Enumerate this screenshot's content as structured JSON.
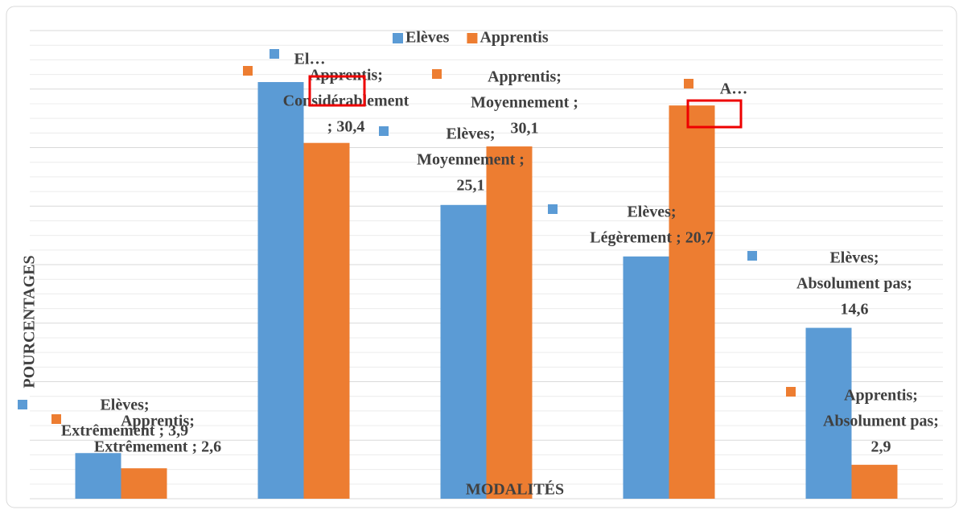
{
  "chart_data": {
    "type": "bar",
    "x_label": "MODALITÉS",
    "y_label": "POURCENTAGES",
    "categories": [
      "Extrêmement",
      "Considérablement",
      "Moyennement",
      "Légèrement",
      "Absolument pas"
    ],
    "series": [
      {
        "name": "Elèves",
        "color": "#5b9bd5",
        "values": [
          3.9,
          35.6,
          25.1,
          20.7,
          14.6
        ],
        "value_labels": [
          [
            "Elèves;",
            "Extrêmement ; 3,9"
          ],
          [
            "El…"
          ],
          [
            "Elèves;",
            "Moyennement ;",
            "25,1"
          ],
          [
            "Elèves;",
            "Légèrement ; 20,7"
          ],
          [
            "Elèves;",
            "Absolument pas;",
            "14,6"
          ]
        ]
      },
      {
        "name": "Apprentis",
        "color": "#ed7d31",
        "values": [
          2.6,
          30.4,
          30.1,
          33.6,
          2.9
        ],
        "value_labels": [
          [
            "Apprentis;",
            "Extrêmement ; 2,6"
          ],
          [
            "Apprentis;",
            "Considérablement",
            "; 30,4"
          ],
          [
            "Apprentis;",
            "Moyennement ;",
            "30,1"
          ],
          [
            "A…"
          ],
          [
            "Apprentis;",
            "Absolument pas;",
            "2,9"
          ]
        ]
      }
    ],
    "ylim": [
      0,
      40
    ],
    "yticks": [
      0,
      5,
      10,
      15,
      20,
      25,
      30,
      35,
      40
    ],
    "grid": true,
    "legend": "top"
  }
}
